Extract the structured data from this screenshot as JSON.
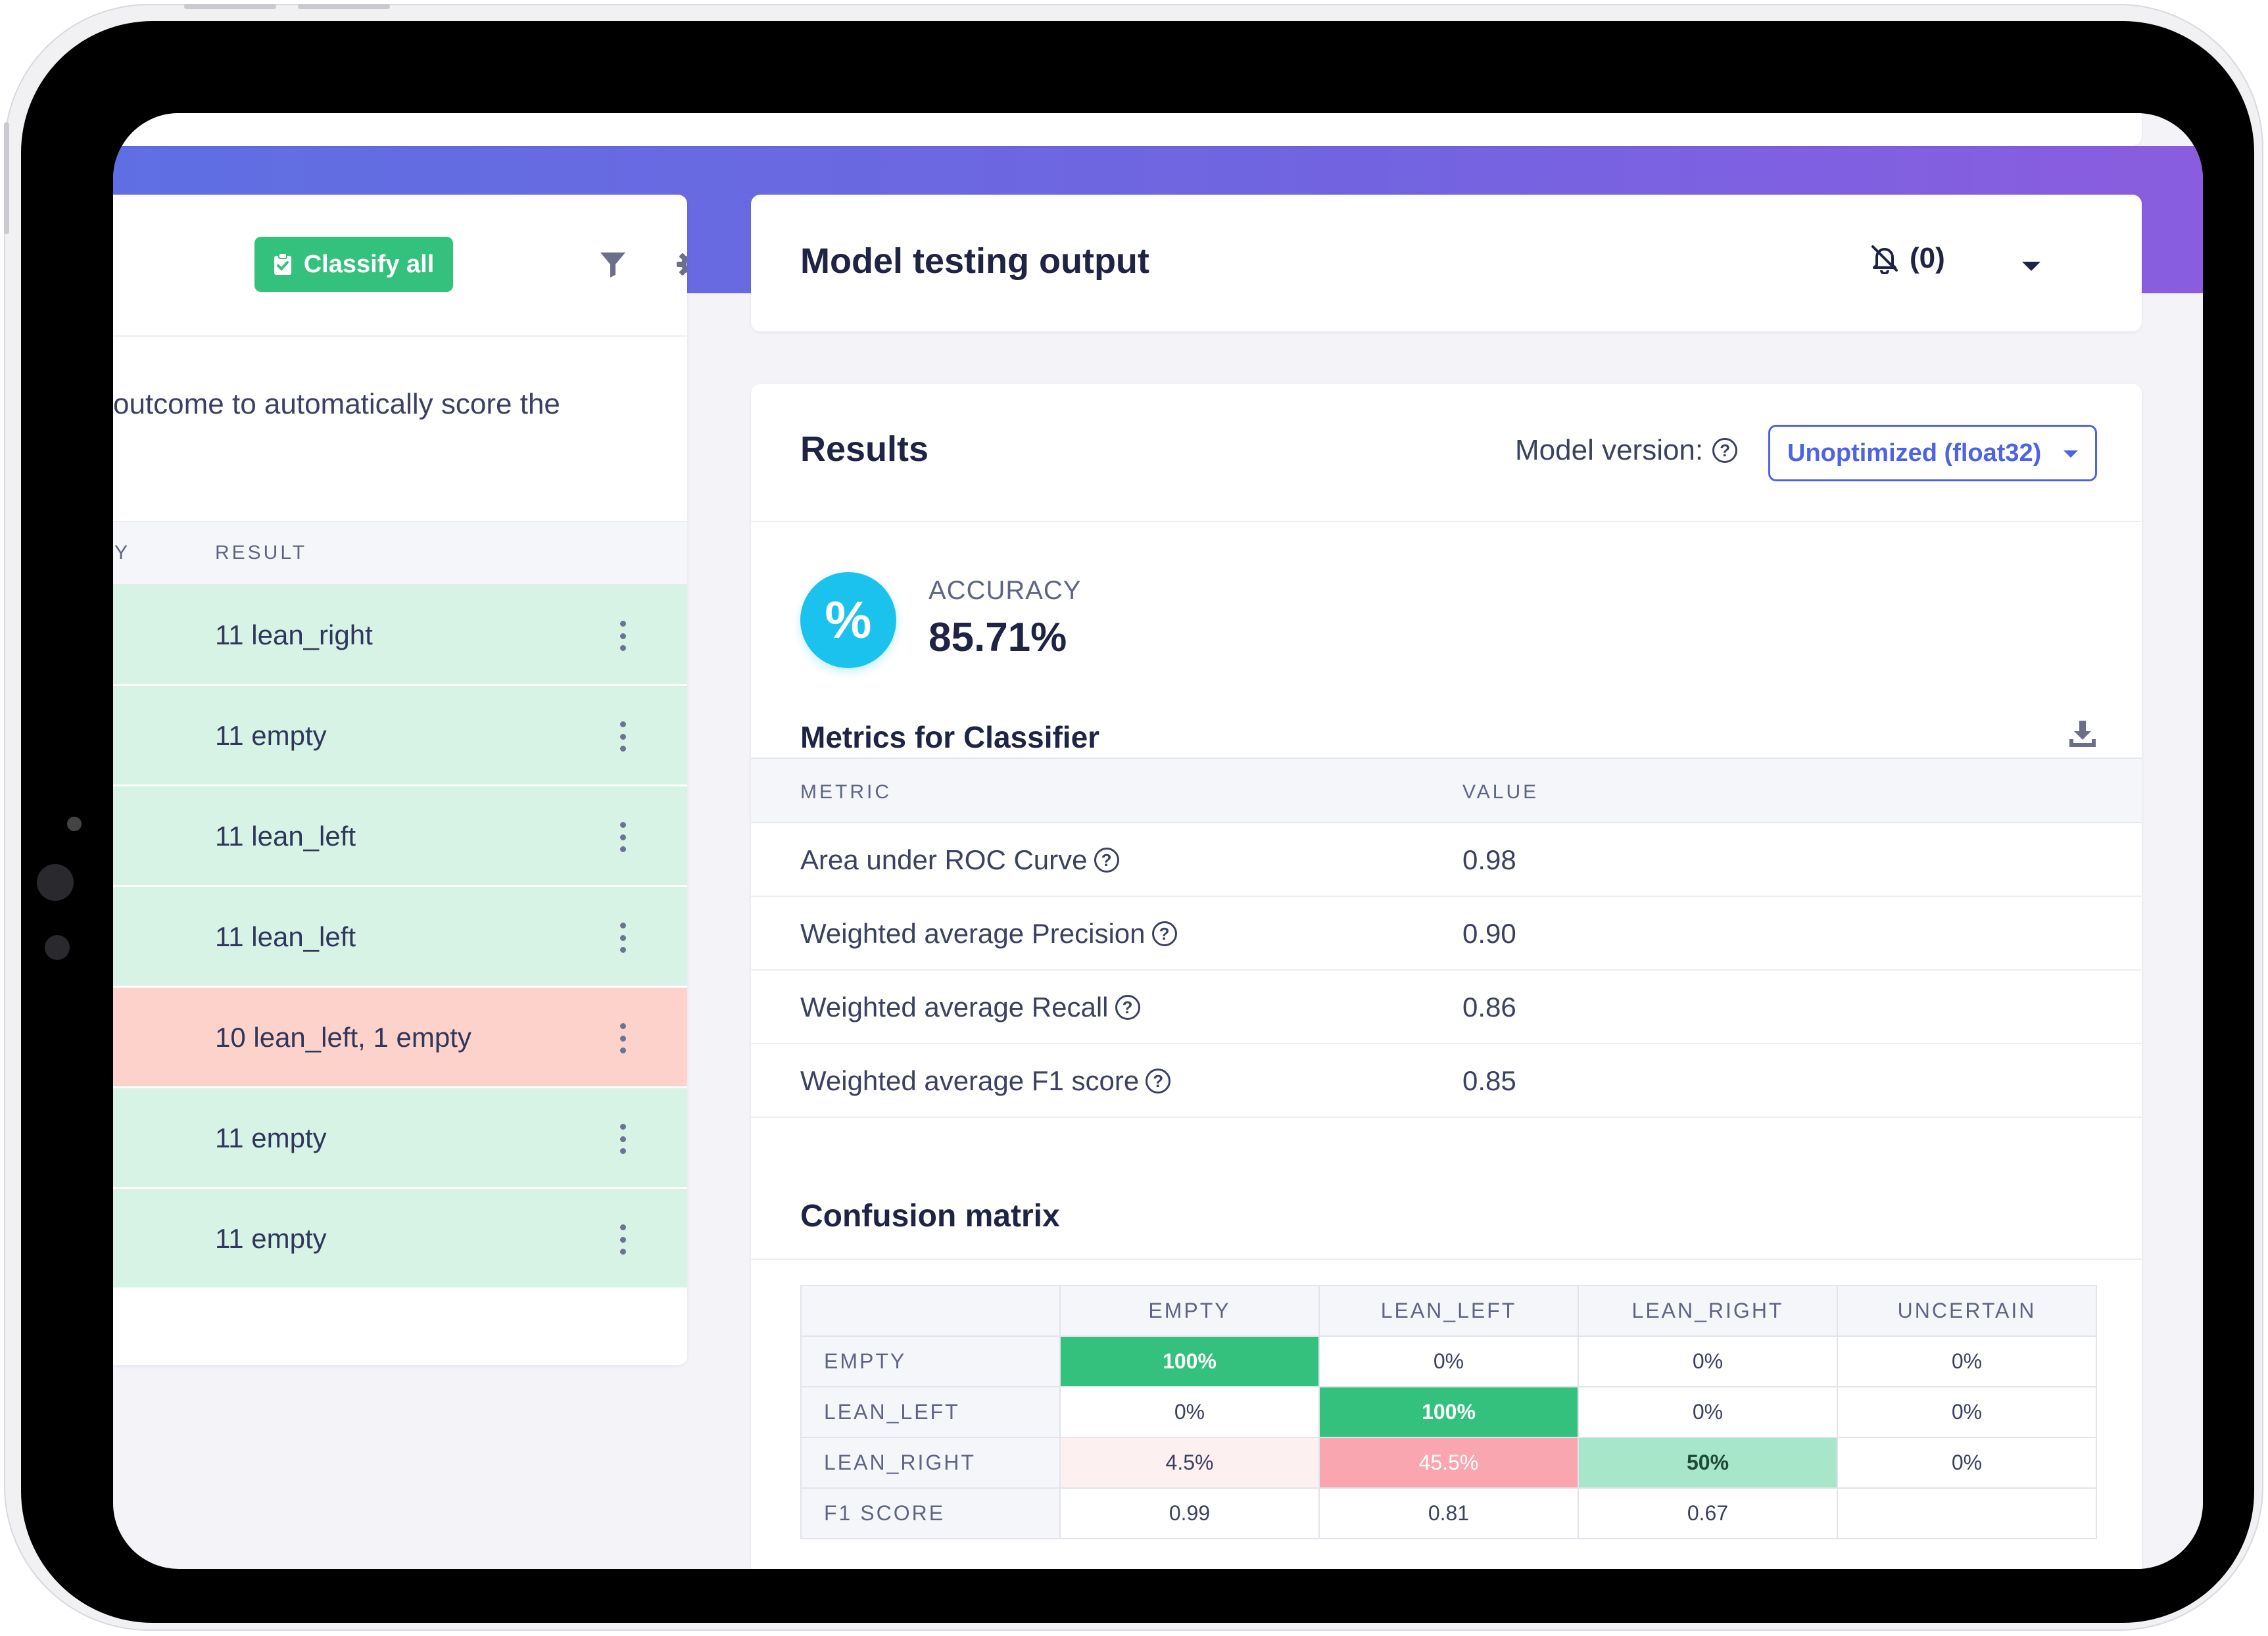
{
  "left_panel": {
    "classify_button": "Classify all",
    "description_fragment": "outcome to automatically score the",
    "columns": {
      "partial": "Y",
      "result": "RESULT"
    },
    "rows": [
      {
        "result": "11 lean_right",
        "status": "correct"
      },
      {
        "result": "11 empty",
        "status": "correct"
      },
      {
        "result": "11 lean_left",
        "status": "correct"
      },
      {
        "result": "11 lean_left",
        "status": "correct"
      },
      {
        "result": "10 lean_left, 1 empty",
        "status": "incorrect"
      },
      {
        "result": "11 empty",
        "status": "correct"
      },
      {
        "result": "11 empty",
        "status": "correct"
      }
    ]
  },
  "output_header": {
    "title": "Model testing output",
    "notification_count": "(0)"
  },
  "results": {
    "title": "Results",
    "model_version_label": "Model version:",
    "model_version_value": "Unoptimized (float32)",
    "accuracy": {
      "icon": "%",
      "label": "ACCURACY",
      "value": "85.71%"
    },
    "metrics_title": "Metrics for Classifier",
    "metrics_columns": {
      "metric": "METRIC",
      "value": "VALUE"
    },
    "metrics": [
      {
        "name": "Area under ROC Curve",
        "value": "0.98"
      },
      {
        "name": "Weighted average Precision",
        "value": "0.90"
      },
      {
        "name": "Weighted average Recall",
        "value": "0.86"
      },
      {
        "name": "Weighted average F1 score",
        "value": "0.85"
      }
    ],
    "confusion_title": "Confusion matrix",
    "confusion": {
      "columns": [
        "EMPTY",
        "LEAN_LEFT",
        "LEAN_RIGHT",
        "UNCERTAIN"
      ],
      "rows": [
        {
          "label": "EMPTY",
          "cells": [
            "100%",
            "0%",
            "0%",
            "0%"
          ]
        },
        {
          "label": "LEAN_LEFT",
          "cells": [
            "0%",
            "100%",
            "0%",
            "0%"
          ]
        },
        {
          "label": "LEAN_RIGHT",
          "cells": [
            "4.5%",
            "45.5%",
            "50%",
            "0%"
          ]
        },
        {
          "label": "F1 SCORE",
          "cells": [
            "0.99",
            "0.81",
            "0.67",
            ""
          ]
        }
      ]
    }
  },
  "colors": {
    "banner_start": "#5f6fe3",
    "banner_end": "#8a5ddf",
    "success": "#33c17d",
    "correct_row": "#d7f3e6",
    "incorrect_row": "#fdd2cb",
    "accent": "#4e63e3",
    "accuracy_icon": "#1cc2ee"
  }
}
